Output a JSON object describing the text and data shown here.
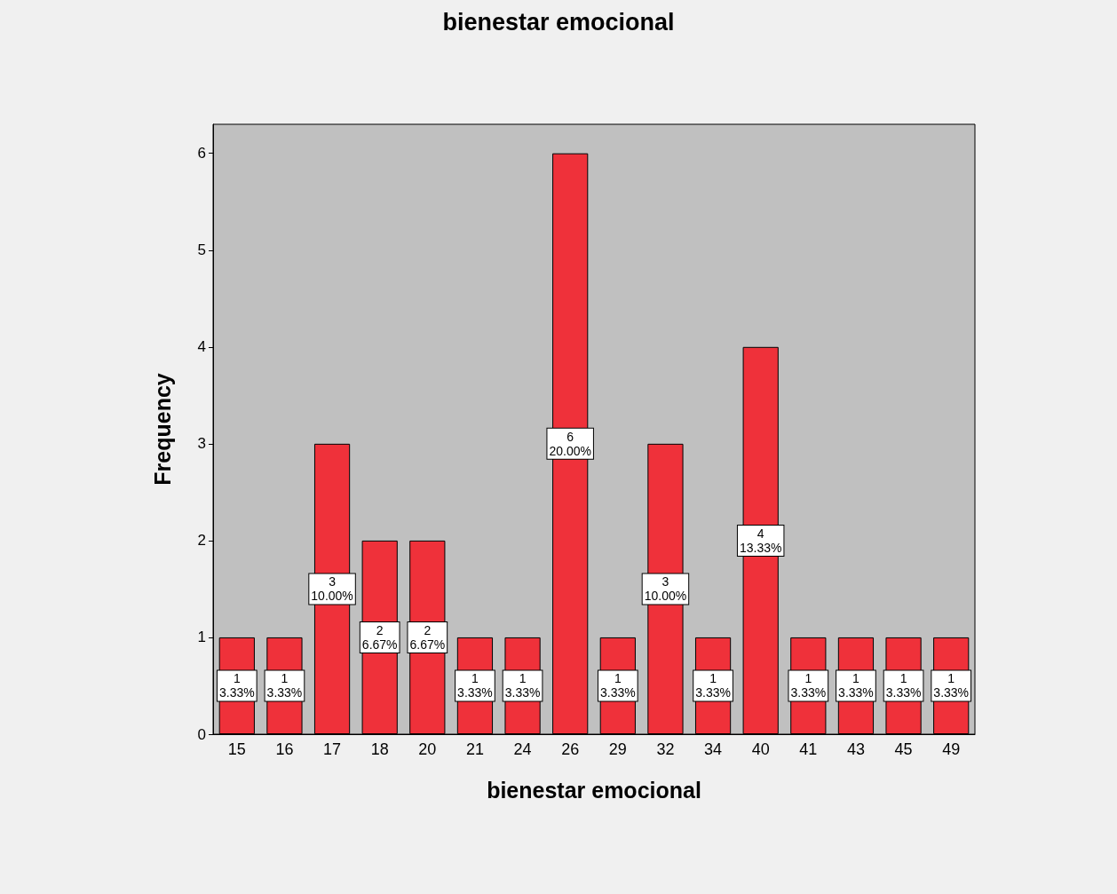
{
  "chart_data": {
    "type": "bar",
    "title": "bienestar emocional",
    "xlabel": "bienestar emocional",
    "ylabel": "Frequency",
    "categories": [
      "15",
      "16",
      "17",
      "18",
      "20",
      "21",
      "24",
      "26",
      "29",
      "32",
      "34",
      "40",
      "41",
      "43",
      "45",
      "49"
    ],
    "values": [
      1,
      1,
      3,
      2,
      2,
      1,
      1,
      6,
      1,
      3,
      1,
      4,
      1,
      1,
      1,
      1
    ],
    "value_labels": [
      "1\n3.33%",
      "1\n3.33%",
      "3\n10.00%",
      "2\n6.67%",
      "2\n6.67%",
      "1\n3.33%",
      "1\n3.33%",
      "6\n20.00%",
      "1\n3.33%",
      "3\n10.00%",
      "1\n3.33%",
      "4\n13.33%",
      "1\n3.33%",
      "1\n3.33%",
      "1\n3.33%",
      "1\n3.33%"
    ],
    "color": "#ef313a",
    "ylim": [
      0,
      6.3
    ],
    "yticks": [
      0,
      1,
      2,
      3,
      4,
      5,
      6
    ],
    "grid": false
  }
}
